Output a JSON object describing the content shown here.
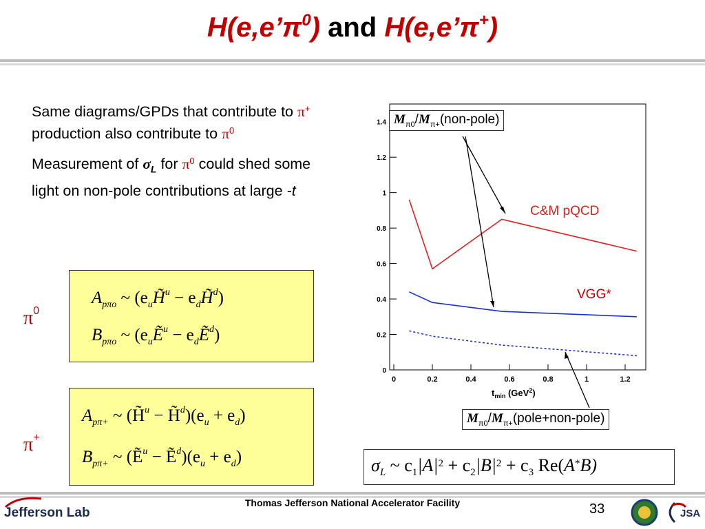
{
  "slide": {
    "title_left": "H(e,e’π",
    "title_left_sup": "0",
    "title_left_close": ")",
    "title_and": " and ",
    "title_right": "H(e,e’π",
    "title_right_sup": "+",
    "title_right_close": ")"
  },
  "bullets": {
    "b1_text": "Same diagrams/GPDs that contribute to ",
    "b1_pi": "π",
    "b1_sup": "+",
    "b1_text2": " production also contribute to ",
    "b1_pi2": "π",
    "b1_sup2": "0",
    "b2_text": "Measurement of ",
    "b2_sigma": "σ",
    "b2_sub": "L",
    "b2_text2": " for ",
    "b2_pi": "π",
    "b2_sup": "0",
    "b2_text3": " could shed some light on non-pole contributions at large ",
    "b2_t": "-t"
  },
  "equations": {
    "pi0_label": "π",
    "pi0_sup": "0",
    "pi0_A": "A",
    "pi0_A_sub": "pπo",
    "pi0_A_rhs": "~ (e",
    "pi0_A_rhs2": "H̃",
    "pi0_A_rhs3": " − e",
    "pi0_A_rhs4": "H̃",
    "pi0_A_rhs5": ")",
    "pi0_B": "B",
    "pi0_B_sub": "pπo",
    "pi0_B_rhs": "~ (e",
    "pi0_B_rhs2": "Ẽ",
    "pi0_B_rhs3": " − e",
    "pi0_B_rhs4": "Ẽ",
    "pi0_B_rhs5": ")",
    "pip_label": "π",
    "pip_sup": "+",
    "pip_A": "A",
    "pip_A_sub": "pπ+",
    "pip_A_rhs": "~ (H̃",
    "pip_A_rhs2": " − H̃",
    "pip_A_rhs3": ")(e",
    "pip_A_rhs4": " + e",
    "pip_A_rhs5": ")",
    "pip_B": "B",
    "pip_B_sub": "pπ+",
    "pip_B_rhs": "~ (Ẽ",
    "pip_B_rhs2": " − Ẽ",
    "pip_B_rhs3": ")(e",
    "pip_B_rhs4": " + e",
    "pip_B_rhs5": ")",
    "sub_u": "u",
    "sub_d": "d",
    "sup_u": "u",
    "sup_d": "d",
    "sigma_lhs": "σ",
    "sigma_sub": "L",
    "sigma_rhs1": " ~ c",
    "sigma_c1": "1",
    "sigma_A": "|A|",
    "sigma_sq": "2",
    "sigma_rhs2": " + c",
    "sigma_c2": "2",
    "sigma_B": "|B|",
    "sigma_rhs3": " + c",
    "sigma_c3": "3",
    "sigma_re": " Re(",
    "sigma_Astar": "A",
    "sigma_star": "*",
    "sigma_end": "B)"
  },
  "chart_data": {
    "type": "line",
    "xlabel": "t",
    "xlabel_sub": "min",
    "xlabel_unit": " (GeV",
    "xlabel_sup": "2",
    "xlabel_close": ")",
    "xlim": [
      0,
      1.3
    ],
    "ylim": [
      0,
      1.5
    ],
    "xticks": [
      "0",
      "0.2",
      "0.4",
      "0.6",
      "0.8",
      "1",
      "1.2"
    ],
    "yticks": [
      "0",
      "0.2",
      "0.4",
      "0.6",
      "0.8",
      "1",
      "1.2",
      "1.4"
    ],
    "series": [
      {
        "name": "C&M pQCD",
        "color": "#e02020",
        "dash": false,
        "x": [
          0.08,
          0.2,
          0.56,
          1.26
        ],
        "y": [
          0.96,
          0.57,
          0.85,
          0.67
        ]
      },
      {
        "name": "VGG*",
        "color": "#1a2fd0",
        "dash": false,
        "x": [
          0.08,
          0.2,
          0.56,
          1.26
        ],
        "y": [
          0.44,
          0.38,
          0.33,
          0.3
        ]
      },
      {
        "name": "",
        "color": "#1a2fd0",
        "dash": true,
        "x": [
          0.08,
          0.2,
          0.56,
          1.26
        ],
        "y": [
          0.22,
          0.19,
          0.14,
          0.08
        ]
      }
    ],
    "annotations": {
      "callout_top_m1": "M",
      "callout_top_sub1": "π0",
      "callout_top_slash": "/",
      "callout_top_m2": "M",
      "callout_top_sub2": "π+",
      "callout_top_text": "(non-pole)",
      "callout_bottom_m1": "M",
      "callout_bottom_sub1": "π0",
      "callout_bottom_slash": "/",
      "callout_bottom_m2": "M",
      "callout_bottom_sub2": "π+",
      "callout_bottom_text": "(pole+non-pole)",
      "label_cm": "C&M pQCD",
      "label_vgg": "VGG*"
    },
    "grid": false
  },
  "footer": {
    "org": "Thomas Jefferson National Accelerator Facility",
    "page": "33",
    "lab_logo": "Jefferson Lab",
    "jsa_logo": "JSA"
  },
  "colors": {
    "title": "#c00000",
    "eq_box": "#ffff99",
    "pi_label": "#c00000"
  }
}
